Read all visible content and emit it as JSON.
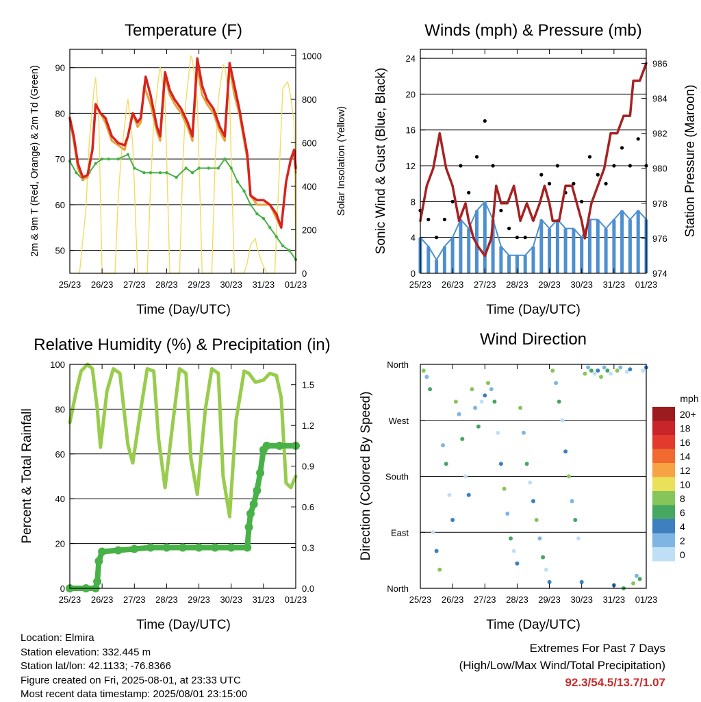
{
  "colors": {
    "t2m": "#e8a23a",
    "t9m": "#d8231f",
    "td": "#46b046",
    "solar": "#f2dc60",
    "wind": "#4d8fd0",
    "gust": "#000000",
    "pressure": "#a52222",
    "rh": "#98cc4c",
    "precip": "#48b248",
    "extremes_text": "#cc2a2a"
  },
  "days": [
    "25/23",
    "26/23",
    "27/23",
    "28/23",
    "29/23",
    "30/23",
    "31/23",
    "01/23"
  ],
  "panels": {
    "temperature": {
      "title": "Temperature (F)",
      "xlabel": "Time (Day/UTC)",
      "ylabel_left": "2m & 9m T (Red, Orange) & 2m Td (Green)",
      "ylabel_right": "Solar Insolation (Yellow)",
      "left_ticks": [
        "50",
        "60",
        "70",
        "80",
        "90"
      ],
      "right_ticks": [
        "0",
        "200",
        "400",
        "600",
        "800",
        "1000"
      ]
    },
    "winds": {
      "title": "Winds (mph) & Pressure (mb)",
      "xlabel": "Time (Day/UTC)",
      "ylabel_left": "Sonic Wind & Gust (Blue, Black)",
      "ylabel_right": "Station Pressure (Maroon)",
      "left_ticks": [
        "0",
        "4",
        "8",
        "12",
        "16",
        "20",
        "24"
      ],
      "right_ticks": [
        "974",
        "976",
        "978",
        "980",
        "982",
        "984",
        "986"
      ]
    },
    "humidity": {
      "title": "Relative Humidity (%) & Precipitation (in)",
      "xlabel": "Time (Day/UTC)",
      "ylabel_left": "Percent & Total Rainfall",
      "left_ticks": [
        "0",
        "20",
        "40",
        "60",
        "80",
        "100"
      ],
      "right_ticks": [
        "0.0",
        "0.3",
        "0.6",
        "0.9",
        "1.2",
        "1.5"
      ]
    },
    "direction": {
      "title": "Wind Direction",
      "xlabel": "Time (Day/UTC)",
      "ylabel_left": "Direction (Colored By Speed)",
      "dir_ticks": [
        "North",
        "East",
        "South",
        "West",
        "North"
      ],
      "legend_title": "mph",
      "legend_labels": [
        "20+",
        "18",
        "16",
        "14",
        "12",
        "10",
        "8",
        "6",
        "4",
        "2",
        "0"
      ],
      "legend_colors": [
        "#9b1b1e",
        "#c8252a",
        "#e23a2c",
        "#f06a30",
        "#f7a243",
        "#ebe05a",
        "#86c55a",
        "#46a763",
        "#3d7fbf",
        "#7fb5e2",
        "#bfe0f4"
      ]
    }
  },
  "chart_data": [
    {
      "type": "line",
      "title": "Temperature (F)",
      "xlabel": "Time (Day/UTC)",
      "ylabel": "2m & 9m T (Red, Orange) & 2m Td (Green)",
      "y2label": "Solar Insolation (Yellow)",
      "ylim": [
        45,
        94
      ],
      "y2lim": [
        0,
        1030
      ],
      "xlim": [
        0,
        7
      ],
      "series": [
        {
          "name": "2m T",
          "axis": "left",
          "x": [
            0,
            0.12,
            0.25,
            0.4,
            0.55,
            0.7,
            0.8,
            0.95,
            1.1,
            1.3,
            1.5,
            1.7,
            1.8,
            1.95,
            2.1,
            2.2,
            2.3,
            2.5,
            2.7,
            2.8,
            2.95,
            3.1,
            3.25,
            3.45,
            3.65,
            3.8,
            3.95,
            4.1,
            4.25,
            4.45,
            4.65,
            4.8,
            4.95,
            5.1,
            5.25,
            5.5,
            5.6,
            5.8,
            6.0,
            6.2,
            6.4,
            6.55,
            6.7,
            6.85,
            6.95,
            7.0
          ],
          "y": [
            78.5,
            74,
            68,
            65.5,
            66,
            72,
            82,
            80,
            78,
            74,
            73,
            72,
            75,
            80,
            77,
            78,
            86,
            82,
            76,
            74,
            88,
            84,
            82,
            80,
            77,
            74,
            90,
            84,
            82,
            80,
            76,
            74,
            90,
            84,
            80,
            70,
            62,
            60,
            60,
            60,
            57,
            55,
            65,
            70,
            71,
            67
          ]
        },
        {
          "name": "9m T",
          "axis": "left",
          "x": [
            0,
            0.12,
            0.25,
            0.4,
            0.55,
            0.7,
            0.8,
            0.95,
            1.1,
            1.3,
            1.5,
            1.7,
            1.8,
            1.95,
            2.1,
            2.2,
            2.35,
            2.5,
            2.7,
            2.8,
            2.95,
            3.1,
            3.25,
            3.45,
            3.65,
            3.8,
            3.95,
            4.1,
            4.25,
            4.45,
            4.65,
            4.8,
            4.95,
            5.1,
            5.25,
            5.5,
            5.6,
            5.8,
            6.0,
            6.2,
            6.4,
            6.55,
            6.7,
            6.85,
            6.95,
            7.0
          ],
          "y": [
            79,
            75,
            69,
            66,
            66.5,
            72,
            82,
            80,
            79,
            75,
            73.5,
            73,
            75,
            80,
            78,
            79,
            88,
            84,
            77,
            75,
            89,
            85,
            83,
            81,
            78,
            75,
            92,
            86,
            83,
            81,
            77,
            75,
            91,
            86,
            81,
            71,
            62,
            61,
            61,
            60,
            58,
            55,
            65,
            70,
            72,
            68
          ]
        },
        {
          "name": "2m Td",
          "axis": "left",
          "x": [
            0,
            0.2,
            0.4,
            0.6,
            0.8,
            1.0,
            1.2,
            1.5,
            1.8,
            2.0,
            2.3,
            2.5,
            2.8,
            3.0,
            3.3,
            3.6,
            3.8,
            4.0,
            4.3,
            4.6,
            4.8,
            5.0,
            5.2,
            5.4,
            5.6,
            5.8,
            6.0,
            6.2,
            6.4,
            6.6,
            6.8,
            7.0
          ],
          "y": [
            69.5,
            67,
            65.5,
            67,
            69,
            70,
            70,
            70,
            71,
            68,
            67,
            67,
            67,
            67,
            66,
            68,
            67,
            68,
            68,
            68,
            70,
            68,
            65,
            63,
            60,
            58,
            57,
            55,
            53,
            51,
            50,
            48
          ]
        },
        {
          "name": "Solar Insolation",
          "axis": "right",
          "x": [
            0.3,
            0.5,
            0.6,
            0.75,
            0.8,
            0.9,
            1.0,
            1.4,
            1.5,
            1.6,
            1.75,
            1.8,
            1.95,
            2.1,
            2.4,
            2.5,
            2.6,
            2.75,
            2.8,
            2.95,
            3.1,
            3.4,
            3.5,
            3.6,
            3.75,
            3.8,
            3.95,
            4.1,
            4.4,
            4.5,
            4.6,
            4.75,
            4.8,
            4.95,
            5.1,
            5.4,
            5.5,
            5.6,
            5.75,
            5.8,
            5.95,
            6.1,
            6.35,
            6.5,
            6.6,
            6.75,
            6.8,
            6.95,
            7.0
          ],
          "y": [
            0,
            300,
            600,
            850,
            900,
            700,
            0,
            0,
            350,
            550,
            750,
            800,
            600,
            0,
            0,
            400,
            700,
            900,
            950,
            800,
            0,
            0,
            500,
            800,
            1000,
            980,
            800,
            0,
            0,
            500,
            800,
            960,
            950,
            800,
            0,
            0,
            50,
            130,
            160,
            120,
            50,
            0,
            0,
            500,
            850,
            880,
            850,
            700,
            0
          ]
        }
      ]
    },
    {
      "type": "line",
      "title": "Winds (mph) & Pressure (mb)",
      "xlabel": "Time (Day/UTC)",
      "ylabel": "Sonic Wind & Gust (Blue, Black)",
      "y2label": "Station Pressure (Maroon)",
      "ylim": [
        0,
        25
      ],
      "y2lim": [
        974,
        986.8
      ],
      "xlim": [
        0,
        7
      ],
      "series": [
        {
          "name": "Sonic Wind",
          "axis": "left",
          "x": [
            0,
            0.25,
            0.5,
            0.75,
            1.0,
            1.25,
            1.5,
            1.75,
            2.0,
            2.25,
            2.5,
            2.75,
            3.0,
            3.25,
            3.5,
            3.75,
            4.0,
            4.25,
            4.5,
            4.75,
            5.0,
            5.25,
            5.5,
            5.75,
            6.0,
            6.25,
            6.5,
            6.75,
            7.0
          ],
          "y": [
            4,
            3,
            1.5,
            3,
            4,
            6,
            5,
            7,
            8,
            6,
            3,
            2,
            2,
            2,
            3,
            6,
            5,
            6,
            5,
            5,
            4,
            6,
            6,
            5,
            6,
            7,
            6,
            7,
            6
          ]
        },
        {
          "name": "Gust",
          "axis": "left",
          "x": [
            0,
            0.25,
            0.5,
            0.75,
            1.0,
            1.25,
            1.5,
            1.75,
            2.0,
            2.25,
            2.5,
            2.75,
            3.0,
            3.25,
            3.5,
            3.75,
            4.0,
            4.25,
            4.5,
            4.75,
            5.0,
            5.25,
            5.5,
            5.75,
            6.0,
            6.25,
            6.5,
            6.75,
            7.0
          ],
          "y": [
            7,
            6,
            4,
            6,
            8,
            12,
            9,
            13,
            17,
            12,
            7,
            5,
            4,
            4,
            6,
            11,
            10,
            12,
            9,
            10,
            8,
            13,
            11,
            10,
            12,
            14,
            12,
            15,
            12
          ]
        },
        {
          "name": "Station Pressure",
          "axis": "right",
          "x": [
            0,
            0.2,
            0.4,
            0.6,
            0.8,
            1.0,
            1.2,
            1.4,
            1.5,
            1.65,
            1.8,
            2.0,
            2.2,
            2.35,
            2.5,
            2.7,
            2.9,
            3.1,
            3.3,
            3.5,
            3.7,
            3.85,
            4.0,
            4.1,
            4.3,
            4.5,
            4.7,
            4.85,
            5.0,
            5.1,
            5.3,
            5.5,
            5.7,
            5.9,
            6.1,
            6.3,
            6.5,
            6.6,
            6.8,
            7.0
          ],
          "y": [
            977,
            979,
            980,
            982,
            980,
            979,
            977,
            978,
            977,
            976,
            975.5,
            975,
            976,
            979,
            978,
            978,
            979,
            977,
            978,
            977,
            978,
            979,
            978,
            977,
            977,
            979,
            979,
            978,
            977,
            976,
            978,
            979,
            980,
            982,
            982,
            983,
            983,
            985,
            985,
            986
          ]
        }
      ]
    },
    {
      "type": "line",
      "title": "Relative Humidity (%) & Precipitation (in)",
      "xlabel": "Time (Day/UTC)",
      "ylabel": "Percent & Total Rainfall",
      "ylim": [
        0,
        100
      ],
      "y2lim": [
        0,
        1.65
      ],
      "xlim": [
        0,
        7
      ],
      "series": [
        {
          "name": "Relative Humidity",
          "axis": "left",
          "x": [
            0,
            0.2,
            0.35,
            0.55,
            0.7,
            0.85,
            0.95,
            1.15,
            1.35,
            1.55,
            1.8,
            1.95,
            2.2,
            2.4,
            2.6,
            2.75,
            2.95,
            3.2,
            3.4,
            3.6,
            3.75,
            3.95,
            4.2,
            4.4,
            4.6,
            4.75,
            4.95,
            5.15,
            5.4,
            5.55,
            5.75,
            6.0,
            6.2,
            6.4,
            6.55,
            6.7,
            6.85,
            7.0
          ],
          "y": [
            74,
            88,
            97,
            100,
            98,
            80,
            63,
            88,
            98,
            96,
            64,
            56,
            80,
            98,
            97,
            67,
            45,
            75,
            98,
            96,
            58,
            42,
            80,
            98,
            96,
            50,
            32,
            75,
            97,
            96,
            92,
            93,
            96,
            95,
            85,
            47,
            45,
            50
          ]
        },
        {
          "name": "Total Precipitation",
          "axis": "right",
          "x": [
            0,
            0.5,
            0.8,
            0.85,
            0.9,
            1.0,
            1.5,
            2.0,
            2.5,
            3.0,
            3.5,
            4.0,
            4.5,
            5.0,
            5.5,
            5.55,
            5.6,
            5.7,
            5.8,
            5.9,
            6.0,
            6.1,
            6.5,
            7.0
          ],
          "y": [
            0,
            0,
            0,
            0.05,
            0.2,
            0.27,
            0.28,
            0.29,
            0.3,
            0.3,
            0.3,
            0.3,
            0.3,
            0.3,
            0.3,
            0.45,
            0.55,
            0.62,
            0.72,
            0.85,
            1.02,
            1.05,
            1.05,
            1.05
          ]
        }
      ]
    },
    {
      "type": "scatter",
      "title": "Wind Direction",
      "xlabel": "Time (Day/UTC)",
      "ylabel": "Direction (Colored By Speed)",
      "ylim": [
        0,
        360
      ],
      "xlim": [
        0,
        7
      ],
      "series": [
        {
          "name": "Wind Direction",
          "x": [
            0.1,
            0.2,
            0.3,
            0.4,
            0.5,
            0.6,
            0.7,
            0.8,
            0.9,
            1.0,
            1.1,
            1.2,
            1.3,
            1.4,
            1.5,
            1.6,
            1.7,
            1.8,
            1.9,
            2.0,
            2.1,
            2.2,
            2.3,
            2.4,
            2.5,
            2.6,
            2.7,
            2.8,
            2.9,
            3.0,
            3.1,
            3.2,
            3.3,
            3.4,
            3.5,
            3.6,
            3.7,
            3.8,
            3.9,
            4.0,
            4.1,
            4.2,
            4.3,
            4.4,
            4.5,
            4.6,
            4.7,
            4.8,
            4.9,
            5.0,
            5.1,
            5.2,
            5.3,
            5.4,
            5.5,
            5.6,
            5.7,
            5.8,
            5.9,
            6.0,
            6.1,
            6.2,
            6.3,
            6.4,
            6.5,
            6.6,
            6.7,
            6.8,
            6.9,
            7.0
          ],
          "y": [
            350,
            340,
            320,
            90,
            60,
            30,
            230,
            200,
            150,
            110,
            300,
            280,
            240,
            180,
            150,
            320,
            290,
            260,
            300,
            310,
            330,
            320,
            300,
            250,
            200,
            160,
            120,
            80,
            60,
            40,
            290,
            250,
            200,
            170,
            140,
            110,
            80,
            50,
            30,
            10,
            350,
            330,
            300,
            270,
            220,
            180,
            140,
            110,
            80,
            10,
            345,
            355,
            350,
            345,
            350,
            340,
            355,
            350,
            345,
            5,
            350,
            355,
            0,
            348,
            352,
            8,
            20,
            15,
            350,
            355
          ]
        }
      ]
    }
  ],
  "info": {
    "location": "Location: Elmira",
    "elevation": "Station elevation: 332.445 m",
    "latlon": "Station lat/lon: 42.1133; -76.8366",
    "created": "Figure created on Fri, 2025-08-01, at 23:33 UTC",
    "recent": "Most recent data timestamp: 2025/08/01 23:15:00"
  },
  "extremes": {
    "title": "Extremes For Past 7 Days",
    "subtitle": "(High/Low/Max Wind/Total Precipitation)",
    "values": "92.3/54.5/13.7/1.07"
  }
}
